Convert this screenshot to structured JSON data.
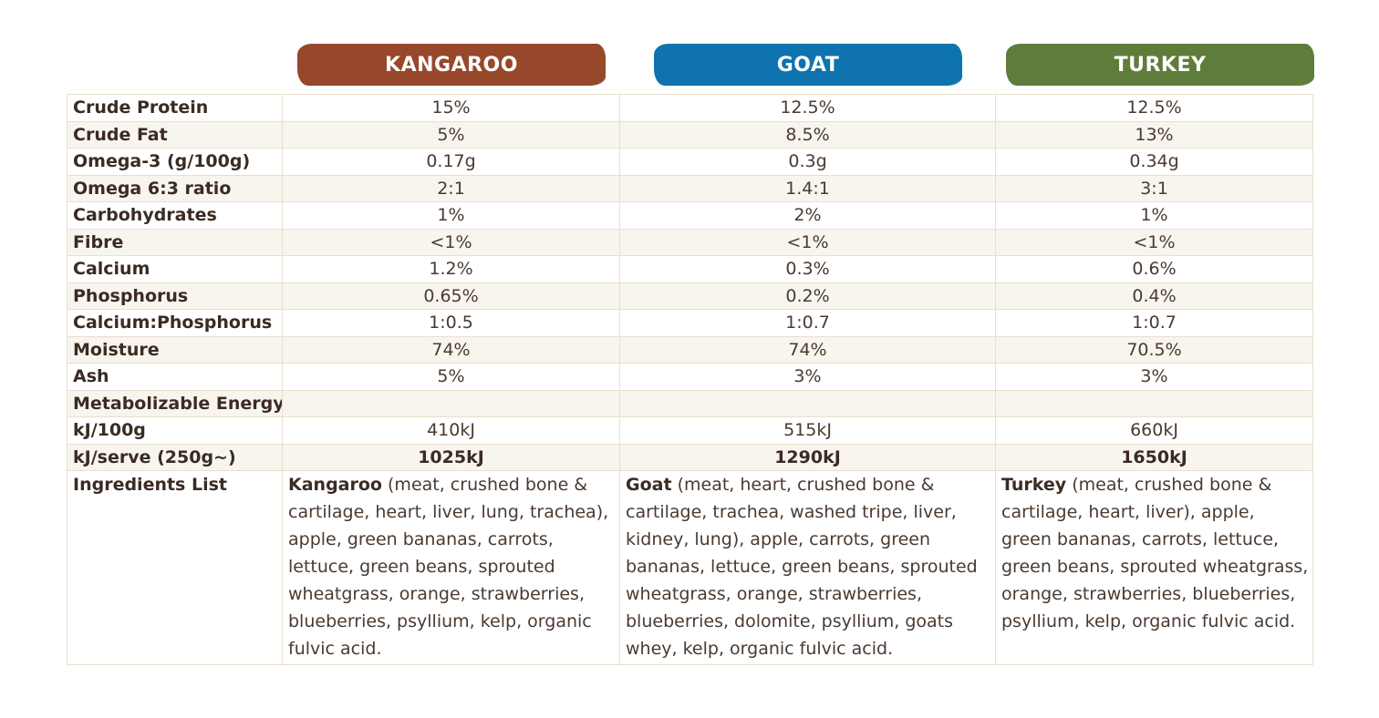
{
  "columns": [
    {
      "name": "KANGAROO",
      "color": "#97472a"
    },
    {
      "name": "GOAT",
      "color": "#0e73ae"
    },
    {
      "name": "TURKEY",
      "color": "#5e7d3a"
    }
  ],
  "rows": [
    {
      "label": "Crude Protein",
      "values": [
        "15%",
        "12.5%",
        "12.5%"
      ]
    },
    {
      "label": "Crude Fat",
      "values": [
        "5%",
        "8.5%",
        "13%"
      ]
    },
    {
      "label": "Omega-3 (g/100g)",
      "values": [
        "0.17g",
        "0.3g",
        "0.34g"
      ]
    },
    {
      "label": "Omega 6:3 ratio",
      "values": [
        "2:1",
        "1.4:1",
        "3:1"
      ]
    },
    {
      "label": "Carbohydrates",
      "values": [
        "1%",
        "2%",
        "1%"
      ]
    },
    {
      "label": "Fibre",
      "values": [
        "<1%",
        "<1%",
        "<1%"
      ]
    },
    {
      "label": "Calcium",
      "values": [
        "1.2%",
        "0.3%",
        "0.6%"
      ]
    },
    {
      "label": "Phosphorus",
      "values": [
        "0.65%",
        "0.2%",
        "0.4%"
      ]
    },
    {
      "label": "Calcium:Phosphorus",
      "values": [
        "1:0.5",
        "1:0.7",
        "1:0.7"
      ]
    },
    {
      "label": "Moisture",
      "values": [
        "74%",
        "74%",
        "70.5%"
      ]
    },
    {
      "label": "Ash",
      "values": [
        "5%",
        "3%",
        "3%"
      ]
    },
    {
      "label": "Metabolizable Energy",
      "values": [
        "",
        "",
        ""
      ]
    },
    {
      "label": "kJ/100g",
      "values": [
        "410kJ",
        "515kJ",
        "660kJ"
      ]
    },
    {
      "label": "kJ/serve (250g~)",
      "values": [
        "1025kJ",
        "1290kJ",
        "1650kJ"
      ],
      "bold": true
    }
  ],
  "ingredients": {
    "label": "Ingredients List",
    "items": [
      {
        "lead": "Kangaroo",
        "text": " (meat, crushed bone & cartilage, heart, liver, lung, trachea), apple, green bananas, carrots, lettuce, green beans, sprouted wheatgrass, orange, strawberries, blueberries, psyllium, kelp, organic fulvic acid."
      },
      {
        "lead": "Goat",
        "text": " (meat, heart, crushed bone & cartilage, trachea, washed tripe, liver, kidney, lung), apple, carrots, green bananas, lettuce, green beans, sprouted wheatgrass, orange, strawberries, blueberries, dolomite, psyllium, goats whey, kelp, organic fulvic acid."
      },
      {
        "lead": "Turkey",
        "text": " (meat, crushed bone & cartilage, heart, liver), apple, green bananas, carrots, lettuce, green beans, sprouted wheatgrass, orange, strawberries, blueberries, psyllium, kelp, organic fulvic acid."
      }
    ]
  }
}
